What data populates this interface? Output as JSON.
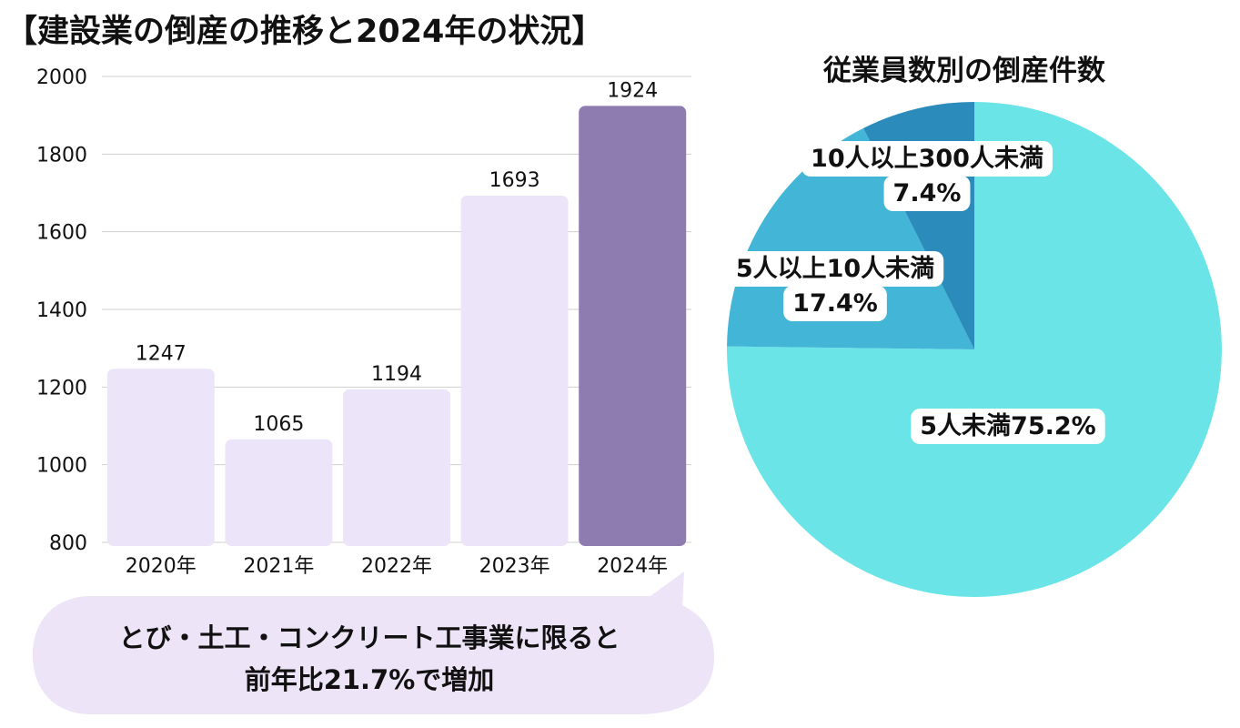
{
  "header": {
    "title": "【建設業の倒産の推移と2024年の状況】"
  },
  "chart_data": [
    {
      "type": "bar",
      "title": "建設業の倒産の推移",
      "categories": [
        "2020年",
        "2021年",
        "2022年",
        "2023年",
        "2024年"
      ],
      "values": [
        1247,
        1065,
        1194,
        1693,
        1924
      ],
      "value_labels": [
        "1247",
        "1065",
        "1194",
        "1693",
        "1924"
      ],
      "ylim": [
        800,
        2000
      ],
      "yticks": [
        "2000",
        "1800",
        "1600",
        "1400",
        "1200",
        "1000",
        "800"
      ],
      "ytick_values": [
        2000,
        1800,
        1600,
        1400,
        1200,
        1000,
        800
      ],
      "grid": true,
      "colors": [
        "#ece4f8",
        "#ece4f8",
        "#ece4f8",
        "#ece4f8",
        "#8e7bb0"
      ],
      "xlabel": "",
      "ylabel": ""
    },
    {
      "type": "pie",
      "title": "従業員数別の倒産件数",
      "slices": [
        {
          "name": "5人未満",
          "value": 75.2,
          "label_line1": "5人未満75.2%",
          "label_line2": "",
          "color": "#6ae4e7"
        },
        {
          "name": "5人以上10人未満",
          "value": 17.4,
          "label_line1": "5人以上10人未満",
          "label_line2": "17.4%",
          "color": "#43b5d6"
        },
        {
          "name": "10人以上300人未満",
          "value": 7.4,
          "label_line1": "10人以上300人未満",
          "label_line2": "7.4%",
          "color": "#2b8cbc"
        }
      ]
    }
  ],
  "callout": {
    "line1": "とび・土工・コンクリート工事業に限ると",
    "line2": "前年比21.7%で増加",
    "color": "#ede4f8"
  }
}
